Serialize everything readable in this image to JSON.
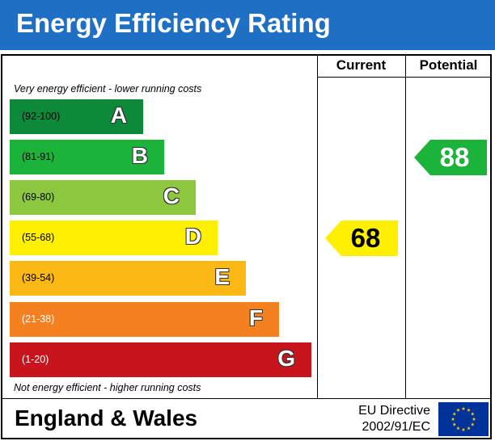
{
  "header": {
    "title": "Energy Efficiency Rating"
  },
  "columns": {
    "current": "Current",
    "potential": "Potential"
  },
  "notes": {
    "top": "Very energy efficient - lower running costs",
    "bottom": "Not energy efficient - higher running costs"
  },
  "footer": {
    "region": "England & Wales",
    "directive_line1": "EU Directive",
    "directive_line2": "2002/91/EC",
    "flag_icon": "eu-flag-icon"
  },
  "chart_data": {
    "type": "bar",
    "title": "Energy Efficiency Rating",
    "categories": [
      "A",
      "B",
      "C",
      "D",
      "E",
      "F",
      "G"
    ],
    "ranges": [
      "(92-100)",
      "(81-91)",
      "(69-80)",
      "(55-68)",
      "(39-54)",
      "(21-38)",
      "(1-20)"
    ],
    "colors": [
      "#0c8a3a",
      "#1bb33a",
      "#8dc63f",
      "#ffef00",
      "#fcb814",
      "#f48020",
      "#c8141c"
    ],
    "current": {
      "value": 68,
      "color": "#ffef00",
      "text_color": "#000000"
    },
    "potential": {
      "value": 88,
      "color": "#1bb33a",
      "text_color": "#ffffff"
    }
  }
}
